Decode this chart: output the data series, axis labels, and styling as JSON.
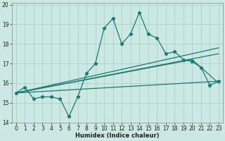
{
  "xlabel": "Humidex (Indice chaleur)",
  "bg_color": "#cce8e4",
  "grid_color": "#aacfca",
  "line_color": "#1a7a6e",
  "xlim": [
    -0.5,
    23.5
  ],
  "ylim": [
    14,
    20.1
  ],
  "yticks": [
    14,
    15,
    16,
    17,
    18,
    19,
    20
  ],
  "xticks": [
    0,
    1,
    2,
    3,
    4,
    5,
    6,
    7,
    8,
    9,
    10,
    11,
    12,
    13,
    14,
    15,
    16,
    17,
    18,
    19,
    20,
    21,
    22,
    23
  ],
  "series1_x": [
    0,
    1,
    2,
    3,
    4,
    5,
    6,
    7,
    8,
    9,
    10,
    11,
    12,
    13,
    14,
    15,
    16,
    17,
    18,
    19,
    20,
    21,
    22,
    23
  ],
  "series1_y": [
    15.5,
    15.8,
    15.2,
    15.3,
    15.3,
    15.2,
    14.3,
    15.3,
    16.5,
    17.0,
    18.8,
    19.3,
    18.0,
    18.5,
    19.6,
    18.5,
    18.3,
    17.5,
    17.6,
    17.2,
    17.1,
    16.8,
    15.9,
    16.1
  ],
  "line1_x": [
    0,
    23
  ],
  "line1_y": [
    15.5,
    17.5
  ],
  "line2_x": [
    0,
    23
  ],
  "line2_y": [
    15.5,
    17.8
  ],
  "line3_x": [
    0,
    20,
    23
  ],
  "line3_y": [
    15.5,
    17.2,
    16.0
  ],
  "line4_x": [
    0,
    23
  ],
  "line4_y": [
    15.5,
    16.1
  ],
  "marker": "*",
  "markersize": 3.5,
  "linewidth": 0.9
}
